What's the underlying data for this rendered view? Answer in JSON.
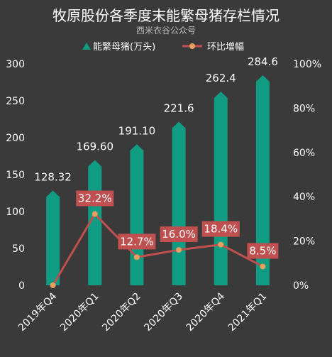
{
  "chart_data": {
    "type": "bar",
    "title": "牧原股份各季度末能繁母猪存栏情况",
    "subtitle": "西米衣谷公众号",
    "categories": [
      "2019年Q4",
      "2020年Q1",
      "2020年Q2",
      "2020年Q3",
      "2020年Q4",
      "2021年Q1"
    ],
    "series": [
      {
        "name": "能繁母猪(万头)",
        "type": "bar",
        "axis": "left",
        "values": [
          128.32,
          169.6,
          191.1,
          221.6,
          262.4,
          284.6
        ],
        "labels": [
          "128.32",
          "169.60",
          "191.10",
          "221.6",
          "262.4",
          "284.6"
        ],
        "color": "#0f9c82"
      },
      {
        "name": "环比增幅",
        "type": "line",
        "axis": "right",
        "values": [
          0,
          32.2,
          12.7,
          16.0,
          18.4,
          8.5
        ],
        "labels": [
          "",
          "32.2%",
          "12.7%",
          "16.0%",
          "18.4%",
          "8.5%"
        ],
        "color": "#c05050",
        "marker_color": "#e8a060"
      }
    ],
    "left_axis": {
      "range": [
        0,
        300
      ],
      "ticks": [
        "0",
        "50",
        "100",
        "150",
        "200",
        "250",
        "300"
      ]
    },
    "right_axis": {
      "range": [
        0,
        100
      ],
      "ticks": [
        "0%",
        "20%",
        "40%",
        "60%",
        "80%",
        "100%"
      ]
    },
    "grid": false,
    "legend_position": "top-center",
    "colors": {
      "background": "#3a3a3a",
      "text": "#ffffff",
      "subtitle": "#bbbbbb",
      "label_box": "#c05050"
    }
  }
}
